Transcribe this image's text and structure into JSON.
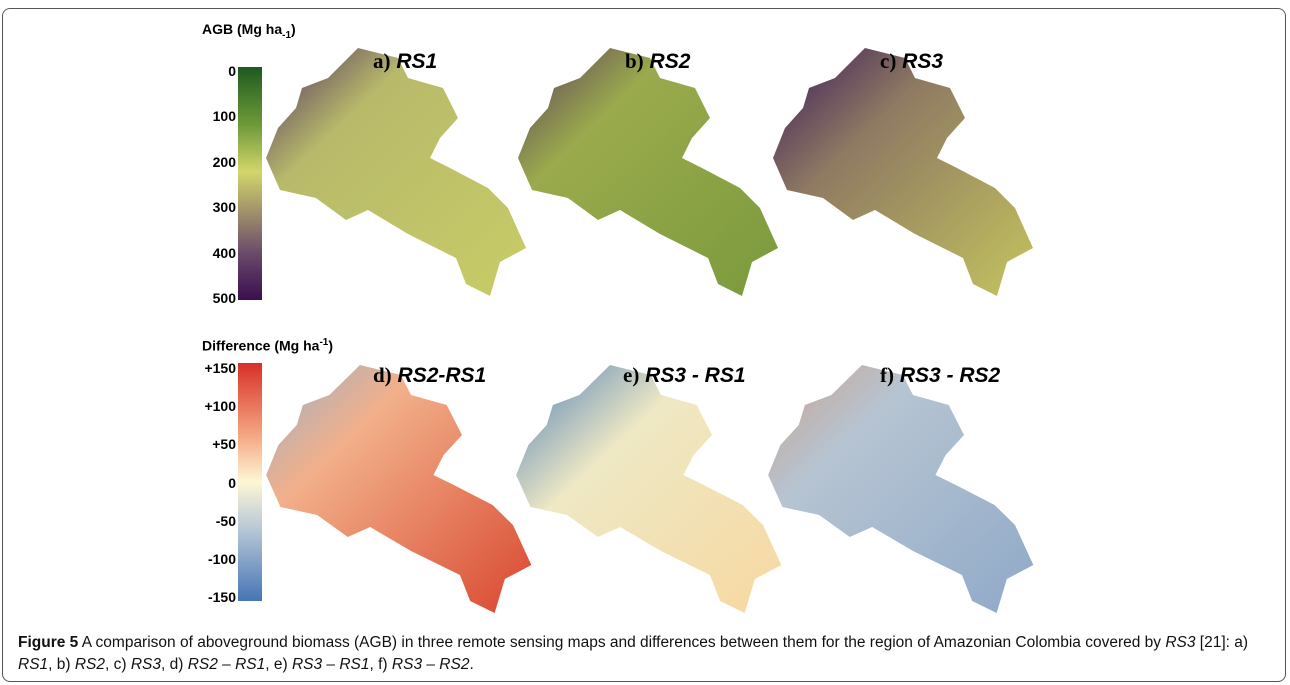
{
  "figure": {
    "top_legend": {
      "title": "AGB (Mg ha",
      "unit_power": "-1",
      "title_close": ")",
      "ticks": [
        "0",
        "100",
        "200",
        "300",
        "400",
        "500"
      ]
    },
    "bottom_legend": {
      "title": "Difference (Mg ha",
      "unit_power": "-1",
      "title_close": ")",
      "ticks": [
        "+150",
        "+100",
        "+50",
        "0",
        "-50",
        "-100",
        "-150"
      ]
    },
    "panels": [
      {
        "letter": "a)",
        "name": "RS1"
      },
      {
        "letter": "b)",
        "name": "RS2"
      },
      {
        "letter": "c)",
        "name": "RS3"
      },
      {
        "letter": "d)",
        "name": "RS2-RS1"
      },
      {
        "letter": "e)",
        "name": "RS3 - RS1"
      },
      {
        "letter": "f)",
        "name": "RS3 - RS2"
      }
    ],
    "caption": {
      "label": "Figure 5",
      "segments": [
        " A comparison of aboveground biomass (AGB) in three remote sensing maps and differences between them for the region of Amazonian Colombia covered by ",
        "RS3",
        " [21]: a) ",
        "RS1",
        ", b) ",
        "RS2",
        ", c) ",
        "RS3",
        ", d) ",
        "RS2 – RS1",
        ", e) ",
        "RS3 – RS1",
        ", f) ",
        "RS3 – RS2",
        "."
      ]
    }
  }
}
